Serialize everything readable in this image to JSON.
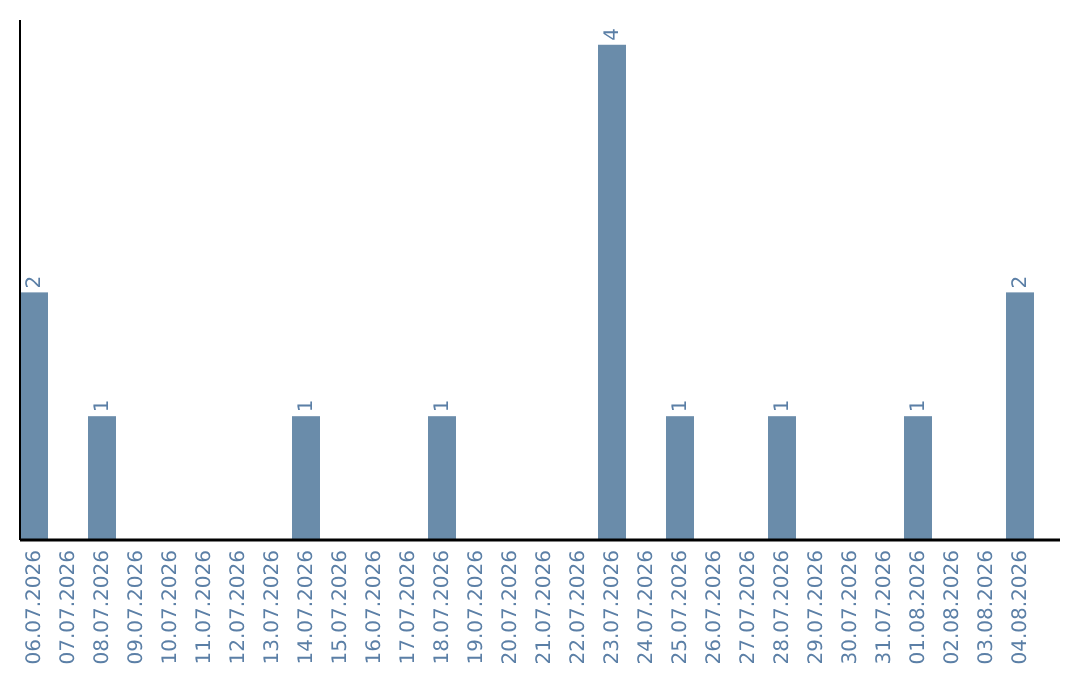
{
  "chart_data": {
    "type": "bar",
    "categories": [
      "06.07.2026",
      "07.07.2026",
      "08.07.2026",
      "09.07.2026",
      "10.07.2026",
      "11.07.2026",
      "12.07.2026",
      "13.07.2026",
      "14.07.2026",
      "15.07.2026",
      "16.07.2026",
      "17.07.2026",
      "18.07.2026",
      "19.07.2026",
      "20.07.2026",
      "21.07.2026",
      "22.07.2026",
      "23.07.2026",
      "24.07.2026",
      "25.07.2026",
      "26.07.2026",
      "27.07.2026",
      "28.07.2026",
      "29.07.2026",
      "30.07.2026",
      "31.07.2026",
      "01.08.2026",
      "02.08.2026",
      "03.08.2026",
      "04.08.2026"
    ],
    "values": [
      2,
      0,
      1,
      0,
      0,
      0,
      0,
      0,
      1,
      0,
      0,
      0,
      1,
      0,
      0,
      0,
      0,
      4,
      0,
      1,
      0,
      0,
      1,
      0,
      0,
      0,
      1,
      0,
      0,
      2
    ],
    "value_labels": [
      "2",
      null,
      "1",
      null,
      null,
      null,
      null,
      null,
      "1",
      null,
      null,
      null,
      "1",
      null,
      null,
      null,
      null,
      "4",
      null,
      "1",
      null,
      null,
      "1",
      null,
      null,
      null,
      "1",
      null,
      null,
      "2"
    ],
    "color": "#6a8caa",
    "ylim": [
      0,
      4.2
    ],
    "tick_labels": "x"
  }
}
